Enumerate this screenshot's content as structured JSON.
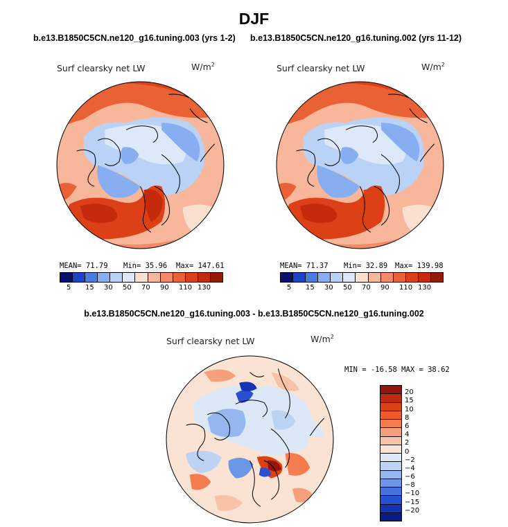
{
  "title": "DJF",
  "panel1": {
    "run_title": "b.e13.B1850C5CN.ne120_g16.tuning.003 (yrs 1-2)",
    "field_label": "Surf clearsky net LW",
    "units": "W/m",
    "units_exp": "2",
    "mean": "MEAN=  71.79",
    "min": "Min=  35.96",
    "max": "Max= 147.61"
  },
  "panel2": {
    "run_title": "b.e13.B1850C5CN.ne120_g16.tuning.002 (yrs 11-12)",
    "field_label": "Surf clearsky net LW",
    "units": "W/m",
    "units_exp": "2",
    "mean": "MEAN=  71.37",
    "min": "Min=  32.89",
    "max": "Max= 139.98"
  },
  "abs_colorbar": {
    "ticks": [
      "5",
      "15",
      "30",
      "50",
      "70",
      "90",
      "110",
      "130"
    ],
    "colors": [
      "#08116b",
      "#1c44c6",
      "#4a7de0",
      "#86aef0",
      "#b9d2f6",
      "#dde9fb",
      "#fbe0cf",
      "#f8b79a",
      "#f38c66",
      "#ea6135",
      "#dd4016",
      "#c62a0d",
      "#941a0a"
    ]
  },
  "diff": {
    "title": "b.e13.B1850C5CN.ne120_g16.tuning.003 - b.e13.B1850C5CN.ne120_g16.tuning.002",
    "field_label": "Surf clearsky net LW",
    "units": "W/m",
    "units_exp": "2",
    "minmax": "MIN = -16.58 MAX =  38.62",
    "colorbar": {
      "ticks": [
        "20",
        "15",
        "10",
        "8",
        "6",
        "4",
        "2",
        "0",
        "−2",
        "−4",
        "−6",
        "−8",
        "−10",
        "−15",
        "−20"
      ],
      "colors": [
        "#96150a",
        "#bf2a10",
        "#dc4015",
        "#ef5a2b",
        "#f47c4f",
        "#f69f7c",
        "#f8c2a6",
        "#fbe3d3",
        "#dce8f8",
        "#bcd3f4",
        "#95b6ee",
        "#6c96e6",
        "#4472df",
        "#2850d2",
        "#1434b4",
        "#0a1b86"
      ]
    }
  },
  "map_palette": {
    "ocean_warm": "#ea6135",
    "ocean_hot": "#c62a0d",
    "ocean_orange": "#f38c66",
    "land_pale": "#dde9fb",
    "land_light": "#b9d2f6",
    "land_mid": "#86aef0",
    "peach": "#fbe0cf",
    "coast": "#000000"
  }
}
